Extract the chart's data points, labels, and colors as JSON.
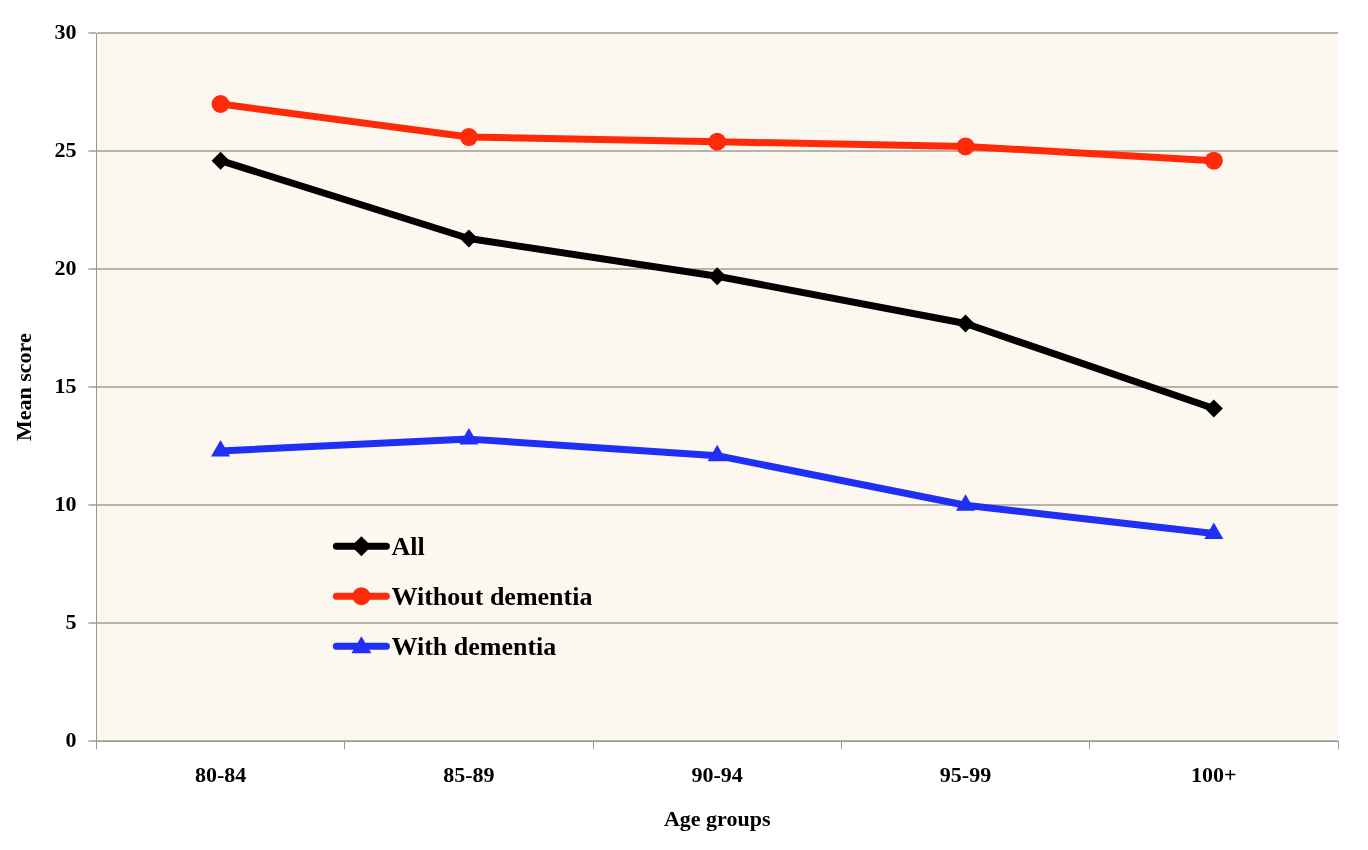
{
  "chart_data": {
    "type": "line",
    "xlabel": "Age groups",
    "ylabel": "Mean score",
    "categories": [
      "80-84",
      "85-89",
      "90-94",
      "95-99",
      "100+"
    ],
    "series": [
      {
        "name": "All",
        "color": "#000000",
        "marker": "diamond",
        "values": [
          24.6,
          21.3,
          19.7,
          17.7,
          14.1
        ]
      },
      {
        "name": "Without dementia",
        "color": "#ff2a0a",
        "marker": "circle",
        "values": [
          27.0,
          25.6,
          25.4,
          25.2,
          24.6
        ]
      },
      {
        "name": "With dementia",
        "color": "#1f2ff5",
        "marker": "triangle",
        "values": [
          12.3,
          12.8,
          12.1,
          10.0,
          8.8
        ]
      }
    ],
    "ylim": [
      0,
      30
    ],
    "yticks": [
      0,
      5,
      10,
      15,
      20,
      25,
      30
    ],
    "grid": "y",
    "legend": "bottom left",
    "line_style": "solid"
  }
}
